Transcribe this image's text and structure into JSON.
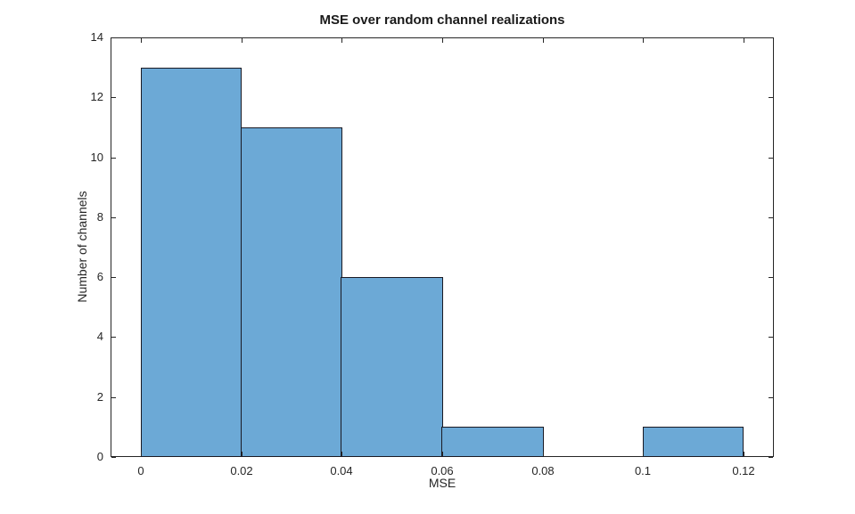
{
  "chart_data": {
    "type": "bar",
    "chart_kind": "histogram",
    "title": "MSE over random channel realizations",
    "xlabel": "MSE",
    "ylabel": "Number of channels",
    "bin_edges": [
      0,
      0.02,
      0.04,
      0.06,
      0.08,
      0.1,
      0.12
    ],
    "values": [
      13,
      11,
      6,
      1,
      0,
      1
    ],
    "x_ticks": [
      "0",
      "0.02",
      "0.04",
      "0.06",
      "0.08",
      "0.1",
      "0.12"
    ],
    "x_tick_values": [
      0,
      0.02,
      0.04,
      0.06,
      0.08,
      0.1,
      0.12
    ],
    "y_ticks": [
      "0",
      "2",
      "4",
      "6",
      "8",
      "10",
      "12",
      "14"
    ],
    "y_tick_values": [
      0,
      2,
      4,
      6,
      8,
      10,
      12,
      14
    ],
    "xlim": [
      -0.006,
      0.126
    ],
    "ylim": [
      0,
      14
    ],
    "grid": false,
    "legend": null,
    "bar_fill_color": "#6CA9D6",
    "bar_edge_color": "#1A1A24",
    "axis_color": "#262626"
  }
}
